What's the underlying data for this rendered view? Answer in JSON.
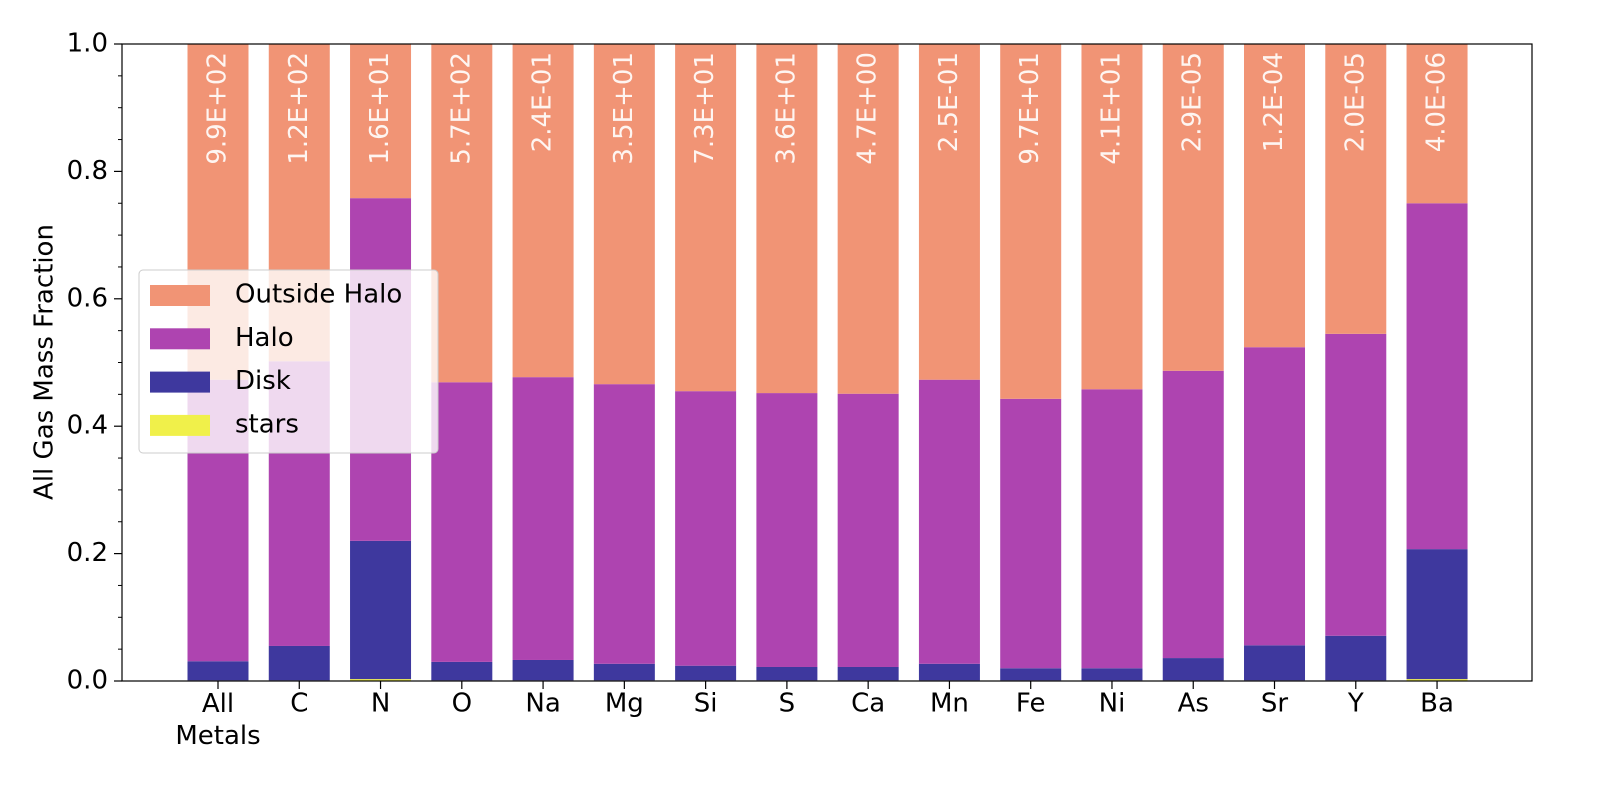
{
  "chart_data": {
    "type": "stacked_bar",
    "ylabel": "All Gas Mass Fraction",
    "categories": [
      "All\nMetals",
      "C",
      "N",
      "O",
      "Na",
      "Mg",
      "Si",
      "S",
      "Ca",
      "Mn",
      "Fe",
      "Ni",
      "As",
      "Sr",
      "Y",
      "Ba"
    ],
    "bar_labels": [
      "9.9E+02",
      "1.2E+02",
      "1.6E+01",
      "5.7E+02",
      "2.4E-01",
      "3.5E+01",
      "7.3E+01",
      "3.6E+01",
      "4.7E+00",
      "2.5E-01",
      "9.7E+01",
      "4.1E+01",
      "2.9E-05",
      "1.2E-04",
      "2.0E-05",
      "4.0E-06"
    ],
    "series": [
      {
        "name": "stars",
        "color": "#f0f04a",
        "values": [
          0.001,
          0.001,
          0.003,
          0.001,
          0.001,
          0.001,
          0.001,
          0.001,
          0.001,
          0.001,
          0.001,
          0.001,
          0.001,
          0.001,
          0.001,
          0.003
        ]
      },
      {
        "name": "Disk",
        "color": "#3e389e",
        "values": [
          0.03,
          0.054,
          0.217,
          0.029,
          0.032,
          0.026,
          0.023,
          0.021,
          0.021,
          0.026,
          0.019,
          0.019,
          0.035,
          0.055,
          0.07,
          0.204
        ]
      },
      {
        "name": "Halo",
        "color": "#ae44b0",
        "values": [
          0.442,
          0.447,
          0.538,
          0.439,
          0.444,
          0.439,
          0.431,
          0.43,
          0.429,
          0.446,
          0.423,
          0.438,
          0.451,
          0.468,
          0.474,
          0.543
        ]
      },
      {
        "name": "Outside Halo",
        "color": "#f19475",
        "values": [
          0.527,
          0.498,
          0.242,
          0.531,
          0.523,
          0.534,
          0.545,
          0.548,
          0.549,
          0.527,
          0.557,
          0.542,
          0.513,
          0.476,
          0.455,
          0.25
        ]
      }
    ],
    "ylim": [
      0,
      1
    ],
    "yticks": [
      {
        "value": 0,
        "label": "0.0"
      },
      0.2,
      0.4,
      0.6,
      0.8,
      {
        "value": 1,
        "label": "1.0"
      }
    ],
    "yminorticks": [
      0.05,
      0.1,
      0.15,
      0.25,
      0.3,
      0.35,
      0.45,
      0.5,
      0.55,
      0.65,
      0.7,
      0.75,
      0.85,
      0.9,
      0.95
    ],
    "legend": "center left"
  }
}
